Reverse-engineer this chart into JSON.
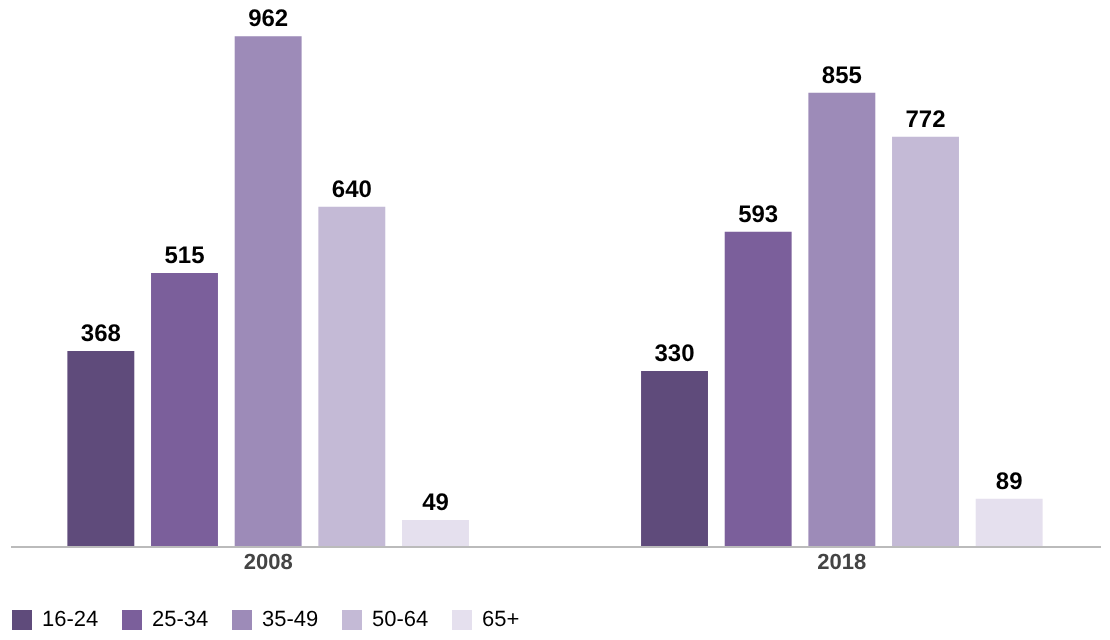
{
  "chart_data": {
    "type": "bar",
    "categories": [
      "2008",
      "2018"
    ],
    "series": [
      {
        "name": "16-24",
        "color": "#5f4b7b",
        "values": [
          368,
          330
        ]
      },
      {
        "name": "25-34",
        "color": "#7b5f9b",
        "values": [
          515,
          593
        ]
      },
      {
        "name": "35-49",
        "color": "#9d8bb8",
        "values": [
          962,
          855
        ]
      },
      {
        "name": "50-64",
        "color": "#c4bad6",
        "values": [
          640,
          772
        ]
      },
      {
        "name": "65+",
        "color": "#e5e0ee",
        "values": [
          49,
          89
        ]
      }
    ],
    "data_labels": true,
    "legend": "bottom",
    "grid": false
  }
}
